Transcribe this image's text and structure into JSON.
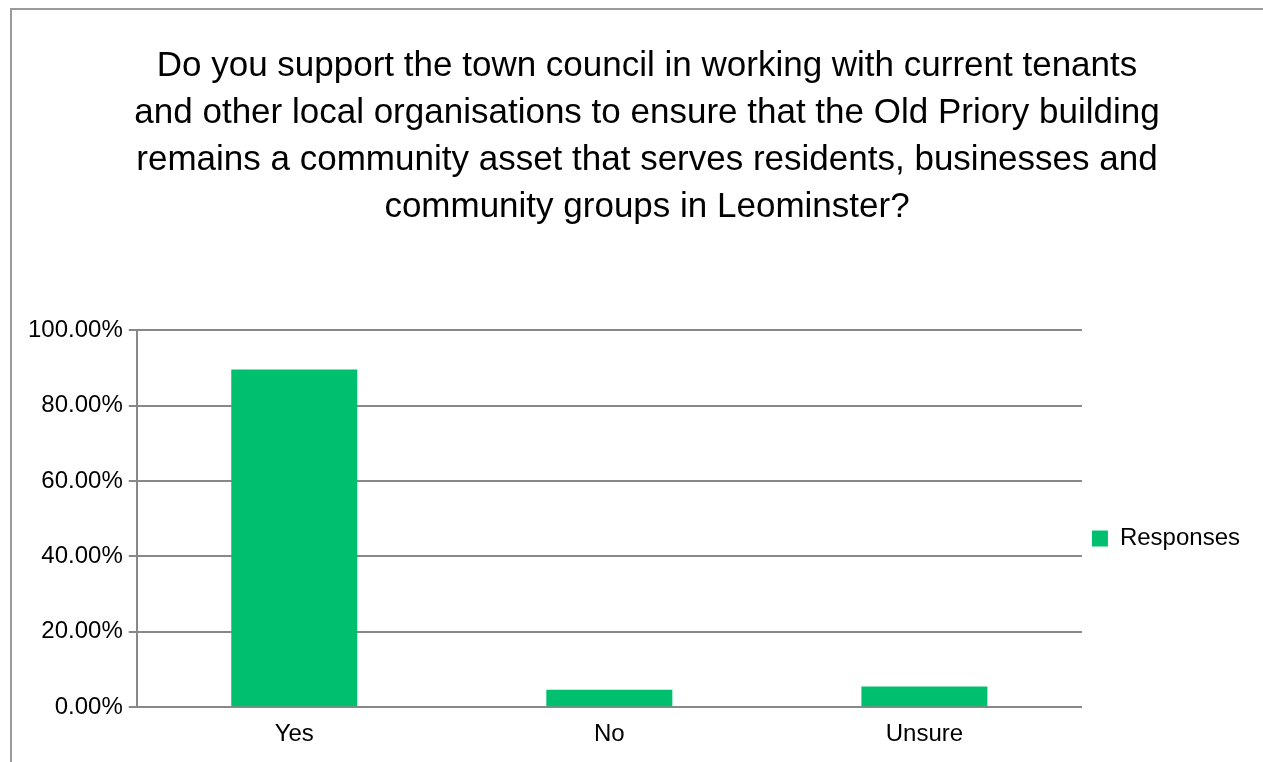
{
  "chart_data": {
    "type": "bar",
    "title": "Do you support the town council in working with current tenants and other local organisations to ensure that the Old Priory building remains a community asset that serves residents, businesses and community groups in Leominster?",
    "categories": [
      "Yes",
      "No",
      "Unsure"
    ],
    "series": [
      {
        "name": "Responses",
        "color": "#00c070",
        "values": [
          89.6,
          4.6,
          5.5
        ]
      }
    ],
    "ylim": [
      0,
      100
    ],
    "yticks": [
      {
        "value": 0,
        "label": "0.00%"
      },
      {
        "value": 20,
        "label": "20.00%"
      },
      {
        "value": 40,
        "label": "40.00%"
      },
      {
        "value": 60,
        "label": "60.00%"
      },
      {
        "value": 80,
        "label": "80.00%"
      },
      {
        "value": 100,
        "label": "100.00%"
      }
    ],
    "grid": "y",
    "legend": "right"
  }
}
